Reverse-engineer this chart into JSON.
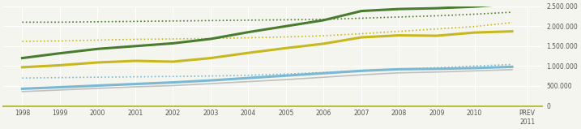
{
  "years": [
    1998,
    1999,
    2000,
    2001,
    2002,
    2003,
    2004,
    2005,
    2006,
    2007,
    2008,
    2009,
    2010,
    2011
  ],
  "series": {
    "green_solid": [
      1200000,
      1320000,
      1430000,
      1500000,
      1570000,
      1680000,
      1850000,
      2000000,
      2150000,
      2380000,
      2430000,
      2450000,
      2490000,
      2560000
    ],
    "green_dotted": [
      2100000,
      2100000,
      2110000,
      2120000,
      2130000,
      2140000,
      2150000,
      2160000,
      2170000,
      2200000,
      2230000,
      2260000,
      2300000,
      2350000
    ],
    "yellow_solid": [
      970000,
      1020000,
      1090000,
      1130000,
      1110000,
      1200000,
      1330000,
      1450000,
      1560000,
      1720000,
      1770000,
      1760000,
      1840000,
      1870000
    ],
    "yellow_dotted": [
      1620000,
      1630000,
      1650000,
      1670000,
      1680000,
      1690000,
      1710000,
      1730000,
      1760000,
      1810000,
      1870000,
      1930000,
      1990000,
      2090000
    ],
    "blue_solid": [
      430000,
      470000,
      510000,
      550000,
      590000,
      640000,
      700000,
      760000,
      820000,
      880000,
      920000,
      930000,
      950000,
      980000
    ],
    "blue_dotted": [
      700000,
      710000,
      720000,
      730000,
      740000,
      750000,
      770000,
      800000,
      840000,
      880000,
      920000,
      960000,
      1000000,
      1040000
    ],
    "gray_solid": [
      360000,
      400000,
      440000,
      480000,
      510000,
      560000,
      610000,
      660000,
      720000,
      780000,
      830000,
      850000,
      880000,
      910000
    ]
  },
  "colors": {
    "green_solid": "#4a7c2f",
    "green_dotted": "#4a7c2f",
    "yellow_solid": "#c8b820",
    "yellow_dotted": "#c8b820",
    "blue_solid": "#7ab8d4",
    "blue_dotted": "#7ab8d4",
    "gray_solid": "#c0c0c0"
  },
  "ylim": [
    0,
    2500000
  ],
  "yticks": [
    0,
    500000,
    1000000,
    1500000,
    2000000,
    2500000
  ],
  "ytick_labels": [
    "0",
    "500.000",
    "1.000.000",
    "1.500.000",
    "2.000.000",
    "2.500.000"
  ],
  "xtick_labels": [
    "1998",
    "1999",
    "2000",
    "2001",
    "2002",
    "2003",
    "2004",
    "2005",
    "2006",
    "2007",
    "2008",
    "2009",
    "2010",
    "PREV\n2011"
  ],
  "background_color": "#f5f5ef",
  "grid_color": "#ffffff",
  "axis_line_color": "#b8c040"
}
